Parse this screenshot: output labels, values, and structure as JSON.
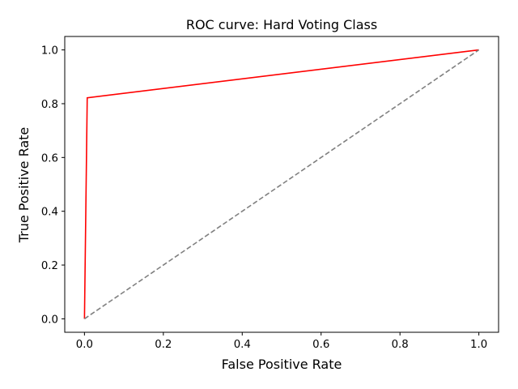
{
  "chart_data": {
    "type": "line",
    "title": "ROC curve: Hard Voting Class",
    "xlabel": "False Positive Rate",
    "ylabel": "True Positive Rate",
    "xlim": [
      -0.05,
      1.05
    ],
    "ylim": [
      -0.05,
      1.05
    ],
    "x_ticks": [
      0.0,
      0.2,
      0.4,
      0.6,
      0.8,
      1.0
    ],
    "x_tick_labels": [
      "0.0",
      "0.2",
      "0.4",
      "0.6",
      "0.8",
      "1.0"
    ],
    "y_ticks": [
      0.0,
      0.2,
      0.4,
      0.6,
      0.8,
      1.0
    ],
    "y_tick_labels": [
      "0.0",
      "0.2",
      "0.4",
      "0.6",
      "0.8",
      "1.0"
    ],
    "grid": false,
    "series": [
      {
        "x": [
          0.0,
          0.007,
          1.0
        ],
        "y": [
          0.0,
          0.822,
          1.0
        ],
        "color": "#ff0000",
        "style": "solid"
      },
      {
        "x": [
          0.0,
          1.0
        ],
        "y": [
          0.0,
          1.0
        ],
        "color": "#808080",
        "style": "dashed"
      }
    ]
  }
}
